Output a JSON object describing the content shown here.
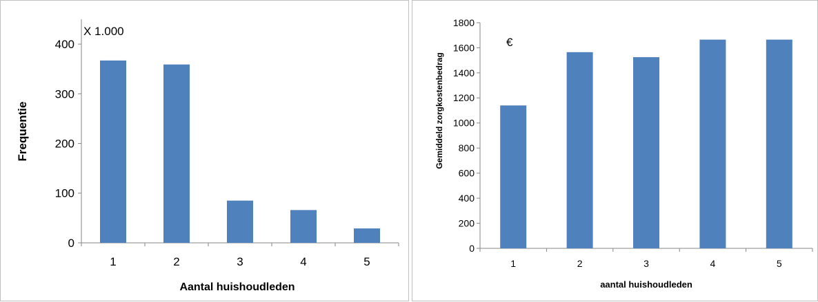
{
  "chart_data": [
    {
      "type": "bar",
      "categories": [
        "1",
        "2",
        "3",
        "4",
        "5"
      ],
      "values": [
        367,
        359,
        85,
        66,
        29
      ],
      "xlabel": "Aantal huishoudleden",
      "ylabel": "Frequentie",
      "annotation": "X 1.000",
      "ylim": [
        0,
        450
      ],
      "yticks": [
        0,
        100,
        200,
        300,
        400
      ],
      "grid": false,
      "bar_color": "#4f81bd"
    },
    {
      "type": "bar",
      "categories": [
        "1",
        "2",
        "3",
        "4",
        "5"
      ],
      "values": [
        1140,
        1565,
        1525,
        1665,
        1665
      ],
      "xlabel": "aantal huishoudleden",
      "ylabel": "Gemiddeld zorgkostenbedrag",
      "annotation": "€",
      "ylim": [
        0,
        1800
      ],
      "yticks": [
        0,
        200,
        400,
        600,
        800,
        1000,
        1200,
        1400,
        1600,
        1800
      ],
      "grid": false,
      "bar_color": "#4f81bd"
    }
  ]
}
